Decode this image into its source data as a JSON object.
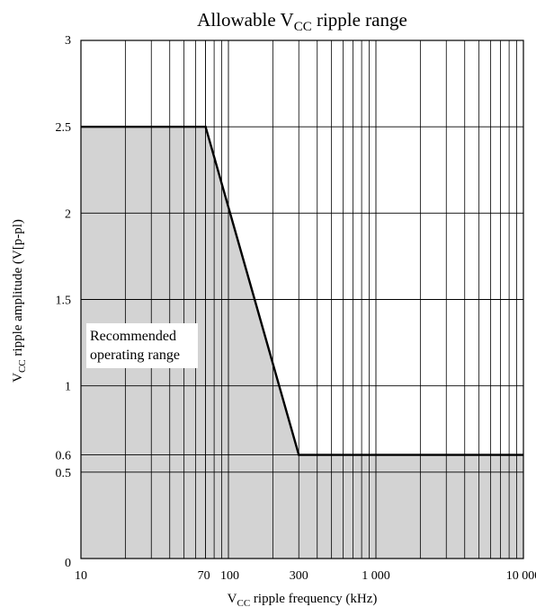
{
  "chart_data": {
    "type": "area",
    "title": {
      "prefix": "Allowable V",
      "sub": "CC",
      "suffix": " ripple range"
    },
    "xlabel": {
      "prefix": "V",
      "sub": "CC",
      "suffix": " ripple frequency  (kHz)"
    },
    "ylabel": {
      "prefix": "V",
      "sub": "CC",
      "suffix": " ripple amplitude  (V[p-pl)"
    },
    "x_scale": "log",
    "xlim": [
      10,
      10000
    ],
    "ylim": [
      0,
      3
    ],
    "x_ticks": [
      {
        "value": 10,
        "label": "10"
      },
      {
        "value": 70,
        "label": "70"
      },
      {
        "value": 100,
        "label": "100"
      },
      {
        "value": 300,
        "label": "300"
      },
      {
        "value": 1000,
        "label": "1 000"
      },
      {
        "value": 10000,
        "label": "10 000"
      }
    ],
    "y_ticks": [
      {
        "value": 0,
        "label": "0"
      },
      {
        "value": 0.5,
        "label": "0.5"
      },
      {
        "value": 0.6,
        "label": "0.6"
      },
      {
        "value": 1,
        "label": "1"
      },
      {
        "value": 1.5,
        "label": "1.5"
      },
      {
        "value": 2,
        "label": "2"
      },
      {
        "value": 2.5,
        "label": "2.5"
      },
      {
        "value": 3,
        "label": "3"
      }
    ],
    "grid": true,
    "boundary": {
      "x": [
        10,
        70,
        300,
        10000
      ],
      "y": [
        2.5,
        2.5,
        0.6,
        0.6
      ]
    },
    "region_label": [
      "Recommended",
      "operating range"
    ],
    "colors": {
      "region": "#d3d3d3",
      "line": "#000000",
      "grid": "#000000"
    }
  }
}
